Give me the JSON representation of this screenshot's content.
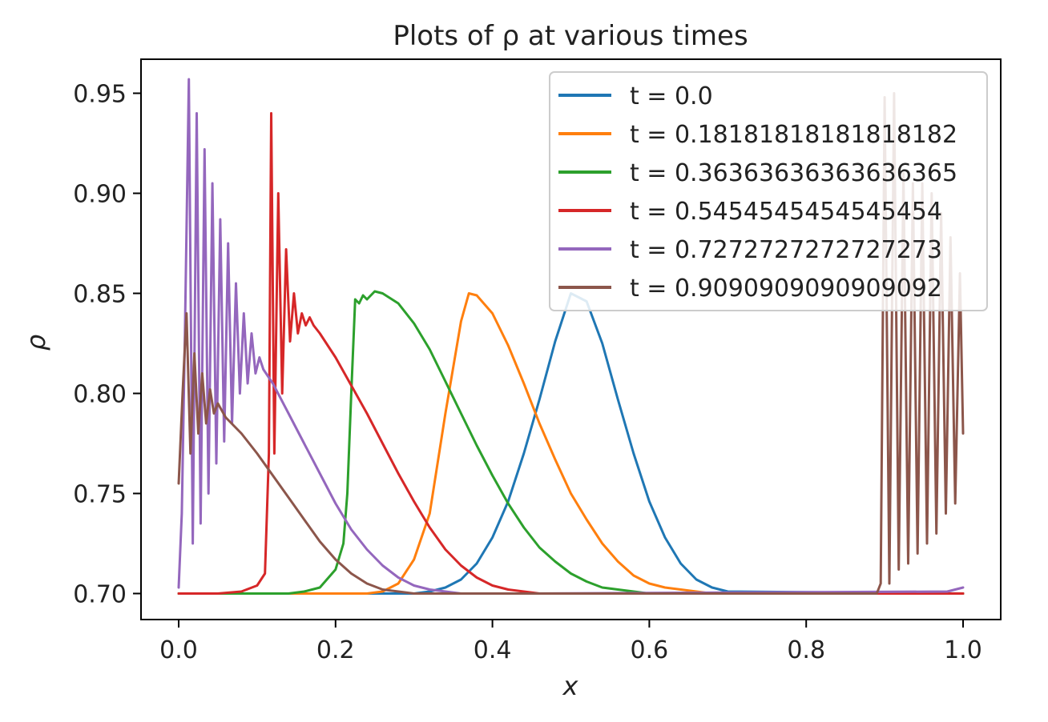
{
  "chart_data": {
    "type": "line",
    "title": "Plots of ρ at various times",
    "xlabel": "x",
    "ylabel": "ρ",
    "xlim": [
      -0.048,
      1.048
    ],
    "ylim": [
      0.687,
      0.967
    ],
    "grid": false,
    "legend_position": "top-right",
    "xticks": [
      0.0,
      0.2,
      0.4,
      0.6,
      0.8,
      1.0
    ],
    "xtick_labels": [
      "0.0",
      "0.2",
      "0.4",
      "0.6",
      "0.8",
      "1.0"
    ],
    "yticks": [
      0.7,
      0.75,
      0.8,
      0.85,
      0.9,
      0.95
    ],
    "ytick_labels": [
      "0.70",
      "0.75",
      "0.80",
      "0.85",
      "0.90",
      "0.95"
    ],
    "series": [
      {
        "name": "t = 0.0",
        "color": "#1f77b4",
        "x": [
          0.0,
          0.3,
          0.32,
          0.34,
          0.36,
          0.38,
          0.4,
          0.42,
          0.44,
          0.46,
          0.48,
          0.5,
          0.52,
          0.54,
          0.56,
          0.58,
          0.6,
          0.62,
          0.64,
          0.66,
          0.68,
          0.7,
          1.0
        ],
        "y": [
          0.7,
          0.7,
          0.701,
          0.703,
          0.707,
          0.715,
          0.728,
          0.746,
          0.77,
          0.797,
          0.826,
          0.85,
          0.846,
          0.825,
          0.797,
          0.77,
          0.746,
          0.728,
          0.715,
          0.707,
          0.703,
          0.701,
          0.7
        ]
      },
      {
        "name": "t = 0.18181818181818182",
        "color": "#ff7f0e",
        "x": [
          0.0,
          0.24,
          0.26,
          0.28,
          0.3,
          0.32,
          0.34,
          0.36,
          0.37,
          0.38,
          0.4,
          0.42,
          0.44,
          0.46,
          0.48,
          0.5,
          0.52,
          0.54,
          0.56,
          0.58,
          0.6,
          0.62,
          0.64,
          0.66,
          0.68,
          0.7,
          1.0
        ],
        "y": [
          0.7,
          0.7,
          0.701,
          0.705,
          0.717,
          0.74,
          0.79,
          0.836,
          0.85,
          0.849,
          0.84,
          0.824,
          0.805,
          0.785,
          0.767,
          0.75,
          0.737,
          0.725,
          0.716,
          0.709,
          0.705,
          0.703,
          0.702,
          0.701,
          0.7,
          0.7,
          0.7
        ]
      },
      {
        "name": "t = 0.36363636363636365",
        "color": "#2ca02c",
        "x": [
          0.0,
          0.14,
          0.16,
          0.18,
          0.2,
          0.21,
          0.215,
          0.22,
          0.225,
          0.23,
          0.235,
          0.24,
          0.25,
          0.26,
          0.28,
          0.3,
          0.32,
          0.34,
          0.36,
          0.38,
          0.4,
          0.42,
          0.44,
          0.46,
          0.48,
          0.5,
          0.52,
          0.54,
          0.56,
          0.58,
          0.6,
          0.62,
          0.65,
          0.7,
          1.0
        ],
        "y": [
          0.7,
          0.7,
          0.701,
          0.703,
          0.712,
          0.725,
          0.75,
          0.8,
          0.847,
          0.845,
          0.849,
          0.847,
          0.851,
          0.85,
          0.845,
          0.835,
          0.822,
          0.806,
          0.79,
          0.774,
          0.759,
          0.745,
          0.733,
          0.723,
          0.716,
          0.71,
          0.706,
          0.703,
          0.702,
          0.701,
          0.7,
          0.7,
          0.7,
          0.7,
          0.7
        ]
      },
      {
        "name": "t = 0.5454545454545454",
        "color": "#d62728",
        "x": [
          0.0,
          0.05,
          0.08,
          0.1,
          0.11,
          0.115,
          0.118,
          0.122,
          0.127,
          0.132,
          0.137,
          0.142,
          0.147,
          0.152,
          0.157,
          0.162,
          0.167,
          0.172,
          0.18,
          0.2,
          0.22,
          0.24,
          0.26,
          0.28,
          0.3,
          0.32,
          0.34,
          0.36,
          0.38,
          0.4,
          0.42,
          0.44,
          0.46,
          0.48,
          0.5,
          0.55,
          1.0
        ],
        "y": [
          0.7,
          0.7,
          0.701,
          0.704,
          0.71,
          0.77,
          0.94,
          0.77,
          0.9,
          0.8,
          0.872,
          0.826,
          0.85,
          0.83,
          0.84,
          0.834,
          0.838,
          0.834,
          0.83,
          0.818,
          0.804,
          0.79,
          0.775,
          0.76,
          0.746,
          0.733,
          0.722,
          0.714,
          0.708,
          0.704,
          0.702,
          0.701,
          0.7,
          0.7,
          0.7,
          0.7,
          0.7
        ]
      },
      {
        "name": "t = 0.7272727272727273",
        "color": "#9467bd",
        "x": [
          0.0,
          0.004,
          0.008,
          0.013,
          0.018,
          0.023,
          0.028,
          0.033,
          0.038,
          0.043,
          0.048,
          0.053,
          0.058,
          0.063,
          0.068,
          0.073,
          0.078,
          0.083,
          0.088,
          0.093,
          0.098,
          0.103,
          0.108,
          0.12,
          0.14,
          0.16,
          0.18,
          0.2,
          0.22,
          0.24,
          0.26,
          0.28,
          0.3,
          0.32,
          0.34,
          0.36,
          0.38,
          0.4,
          0.45,
          0.98,
          1.0
        ],
        "y": [
          0.703,
          0.74,
          0.83,
          0.957,
          0.725,
          0.94,
          0.735,
          0.922,
          0.75,
          0.905,
          0.765,
          0.887,
          0.776,
          0.875,
          0.785,
          0.855,
          0.8,
          0.84,
          0.805,
          0.83,
          0.81,
          0.818,
          0.812,
          0.805,
          0.79,
          0.775,
          0.76,
          0.745,
          0.732,
          0.722,
          0.714,
          0.708,
          0.704,
          0.702,
          0.701,
          0.7,
          0.7,
          0.7,
          0.7,
          0.701,
          0.703
        ]
      },
      {
        "name": "t = 0.9090909090909092",
        "color": "#8c564b",
        "x": [
          0.0,
          0.005,
          0.01,
          0.015,
          0.02,
          0.025,
          0.03,
          0.035,
          0.04,
          0.045,
          0.05,
          0.06,
          0.08,
          0.1,
          0.12,
          0.14,
          0.16,
          0.18,
          0.2,
          0.22,
          0.24,
          0.26,
          0.28,
          0.3,
          0.32,
          0.34,
          0.36,
          0.38,
          0.4,
          0.5,
          0.89,
          0.895,
          0.9,
          0.906,
          0.912,
          0.918,
          0.924,
          0.93,
          0.936,
          0.942,
          0.948,
          0.954,
          0.96,
          0.966,
          0.972,
          0.978,
          0.984,
          0.99,
          0.996,
          1.0
        ],
        "y": [
          0.755,
          0.8,
          0.84,
          0.77,
          0.82,
          0.78,
          0.81,
          0.785,
          0.802,
          0.79,
          0.795,
          0.788,
          0.78,
          0.77,
          0.759,
          0.748,
          0.737,
          0.726,
          0.717,
          0.71,
          0.705,
          0.702,
          0.701,
          0.7,
          0.7,
          0.7,
          0.7,
          0.7,
          0.7,
          0.7,
          0.7,
          0.705,
          0.948,
          0.705,
          0.95,
          0.712,
          0.91,
          0.715,
          0.905,
          0.72,
          0.905,
          0.725,
          0.9,
          0.73,
          0.89,
          0.74,
          0.878,
          0.745,
          0.86,
          0.78
        ]
      }
    ]
  }
}
